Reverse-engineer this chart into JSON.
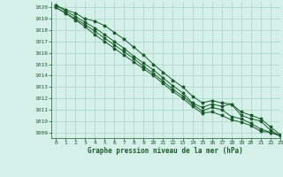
{
  "title": "Graphe pression niveau de la mer (hPa)",
  "bg_color": "#d4f0e8",
  "grid_color": "#b0d8cc",
  "line_color": "#1a5c2a",
  "xlim": [
    -0.5,
    23
  ],
  "ylim": [
    1008.5,
    1020.5
  ],
  "yticks": [
    1009,
    1010,
    1011,
    1012,
    1013,
    1014,
    1015,
    1016,
    1017,
    1018,
    1019,
    1020
  ],
  "xticks": [
    0,
    1,
    2,
    3,
    4,
    5,
    6,
    7,
    8,
    9,
    10,
    11,
    12,
    13,
    14,
    15,
    16,
    17,
    18,
    19,
    20,
    21,
    22,
    23
  ],
  "series": [
    [
      1020.2,
      1019.8,
      1019.5,
      1019.0,
      1018.8,
      1018.4,
      1017.8,
      1017.2,
      1016.5,
      1015.8,
      1015.0,
      1014.3,
      1013.6,
      1013.0,
      1012.2,
      1011.6,
      1011.8,
      1011.6,
      1011.5,
      1010.8,
      1010.5,
      1010.2,
      1009.5,
      1008.8
    ],
    [
      1020.2,
      1019.7,
      1019.2,
      1018.7,
      1018.2,
      1017.6,
      1017.0,
      1016.4,
      1015.7,
      1015.1,
      1014.5,
      1013.8,
      1013.1,
      1012.5,
      1011.6,
      1011.2,
      1011.5,
      1011.3,
      1011.5,
      1010.5,
      1010.2,
      1010.0,
      1009.2,
      1008.7
    ],
    [
      1020.0,
      1019.5,
      1019.0,
      1018.5,
      1017.9,
      1017.3,
      1016.7,
      1016.1,
      1015.5,
      1014.8,
      1014.2,
      1013.5,
      1012.8,
      1012.2,
      1011.5,
      1010.9,
      1011.2,
      1011.0,
      1010.4,
      1010.2,
      1009.8,
      1009.3,
      1009.0,
      1008.7
    ],
    [
      1020.0,
      1019.5,
      1018.9,
      1018.3,
      1017.6,
      1017.0,
      1016.4,
      1015.8,
      1015.2,
      1014.6,
      1014.0,
      1013.3,
      1012.6,
      1012.0,
      1011.3,
      1010.7,
      1010.8,
      1010.5,
      1010.1,
      1009.9,
      1009.6,
      1009.1,
      1009.0,
      1008.7
    ]
  ]
}
